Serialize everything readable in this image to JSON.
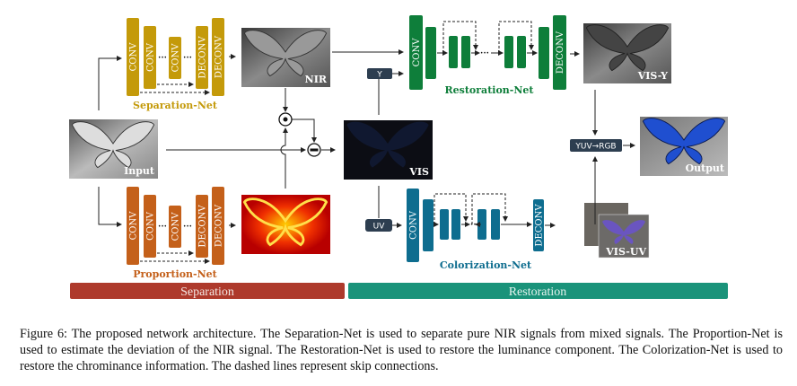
{
  "figure": {
    "separation_net": {
      "label": "Separation-Net",
      "blocks": [
        "CONV",
        "CONV",
        "CONV",
        "DECONV",
        "DECONV"
      ],
      "color": "#c49a0a"
    },
    "proportion_net": {
      "label": "Proportion-Net",
      "blocks": [
        "CONV",
        "CONV",
        "CONV",
        "DECONV",
        "DECONV"
      ],
      "color": "#c4601a"
    },
    "restoration_net": {
      "label": "Restoration-Net",
      "blocks": [
        "CONV",
        "DECONV"
      ],
      "color": "#0e7e3a"
    },
    "colorization_net": {
      "label": "Colorization-Net",
      "blocks": [
        "CONV",
        "DECONV"
      ],
      "color": "#0e6d8f"
    },
    "images": {
      "input": "Input",
      "nir": "NIR",
      "vis": "VIS",
      "vis_y": "VIS-Y",
      "vis_uv": "VIS-UV",
      "output": "Output"
    },
    "boxes": {
      "y": "Y",
      "uv": "UV",
      "yuv_rgb": "YUV→RGB"
    },
    "operators": [
      "dot-product",
      "subtract"
    ],
    "ellipsis": "···",
    "stages": [
      {
        "label": "Separation",
        "color": "#ae3a2c"
      },
      {
        "label": "Restoration",
        "color": "#1a937a"
      }
    ]
  },
  "caption": "Figure 6: The proposed network architecture. The Separation-Net is used to separate pure NIR signals from mixed signals. The Proportion-Net is used to estimate the deviation of the NIR signal. The Restoration-Net is used to restore the luminance component. The Colorization-Net is used to restore the chrominance information. The dashed lines represent skip connections."
}
